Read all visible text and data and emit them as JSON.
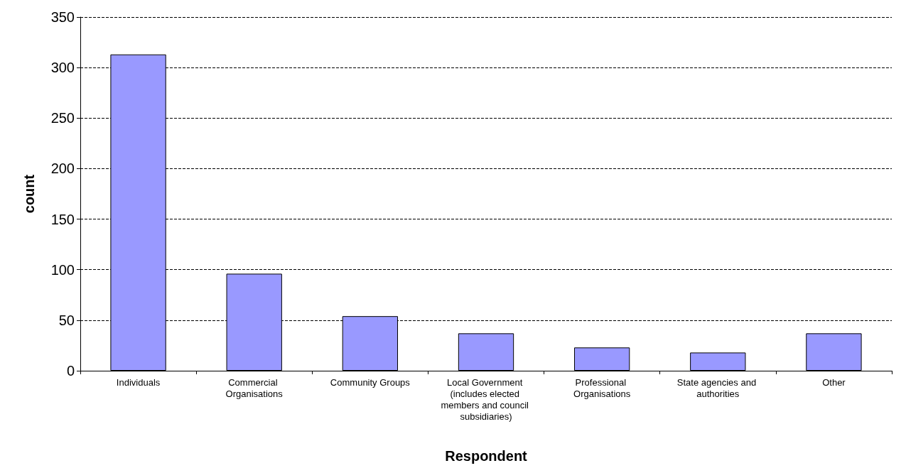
{
  "chart_data": {
    "type": "bar",
    "xlabel": "Respondent",
    "ylabel": "count",
    "categories": [
      "Individuals",
      "Commercial Organisations",
      "Community Groups",
      "Local Government (includes elected members and council subsidiaries)",
      "Professional Organisations",
      "State agencies and authorities",
      "Other"
    ],
    "values": [
      313,
      96,
      54,
      37,
      23,
      18,
      37
    ],
    "color": "#9999ff",
    "ylim": [
      0,
      350
    ],
    "yticks": [
      0,
      50,
      100,
      150,
      200,
      250,
      300,
      350
    ],
    "grid": "y"
  }
}
